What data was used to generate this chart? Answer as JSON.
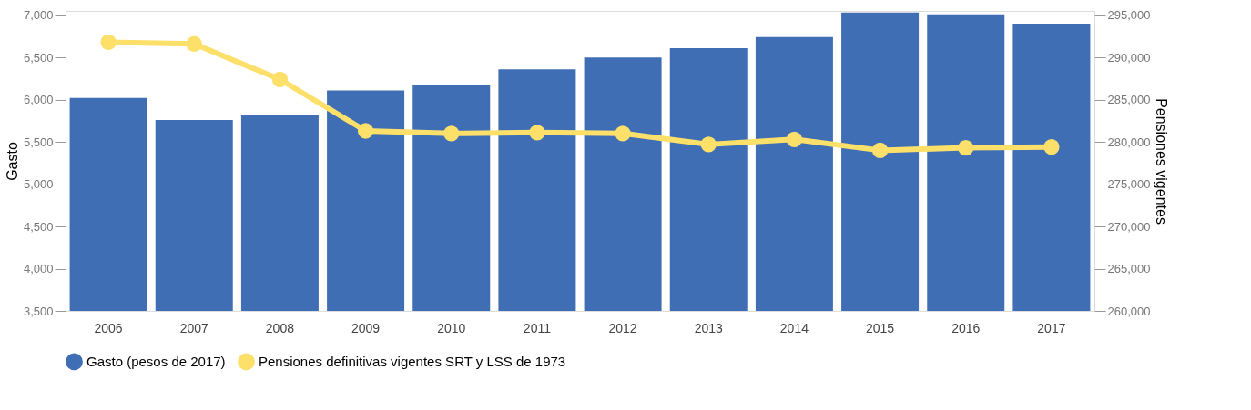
{
  "chart_data": {
    "type": "bar",
    "categories": [
      "2006",
      "2007",
      "2008",
      "2009",
      "2010",
      "2011",
      "2012",
      "2013",
      "2014",
      "2015",
      "2016",
      "2017"
    ],
    "ylabel": "Gasto",
    "y2label": "Pensiones vigentes",
    "series": [
      {
        "name": "Gasto (pesos de 2017)",
        "color": "#3f6eb5",
        "values": [
          6020,
          5760,
          5820,
          6110,
          6170,
          6360,
          6500,
          6610,
          6740,
          7030,
          7010,
          6900
        ]
      },
      {
        "name": "Pensiones definitivas vigentes SRT y LSS de 1973",
        "type": "line",
        "axis": "y2",
        "color": "#fce06a",
        "marker": "circle",
        "values": [
          291800,
          291600,
          287400,
          281300,
          281000,
          281100,
          281000,
          279700,
          280300,
          279000,
          279300,
          279400
        ]
      }
    ],
    "ylim": [
      3500,
      7050
    ],
    "yticks": [
      {
        "value": 3500,
        "label": "3,500"
      },
      {
        "value": 4000,
        "label": "4,000"
      },
      {
        "value": 4500,
        "label": "4,500"
      },
      {
        "value": 5000,
        "label": "5,000"
      },
      {
        "value": 5500,
        "label": "5,500"
      },
      {
        "value": 6000,
        "label": "6,000"
      },
      {
        "value": 6500,
        "label": "6,500"
      },
      {
        "value": 7000,
        "label": "7,000"
      }
    ],
    "y2lim": [
      260000,
      295500
    ],
    "y2ticks": [
      {
        "value": 260000,
        "label": "260,000"
      },
      {
        "value": 265000,
        "label": "265,000"
      },
      {
        "value": 270000,
        "label": "270,000"
      },
      {
        "value": 275000,
        "label": "275,000"
      },
      {
        "value": 280000,
        "label": "280,000"
      },
      {
        "value": 285000,
        "label": "285,000"
      },
      {
        "value": 290000,
        "label": "290,000"
      },
      {
        "value": 295000,
        "label": "295,000"
      }
    ],
    "grid": false,
    "legend": "bottom left"
  }
}
